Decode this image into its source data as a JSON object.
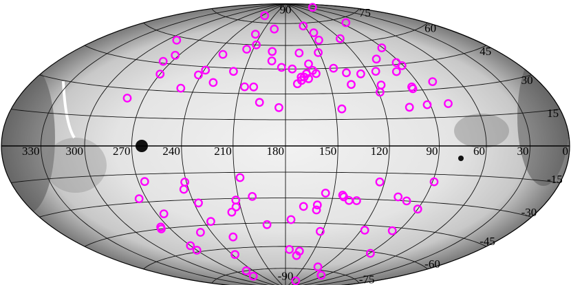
{
  "map": {
    "color": "#ff00ff",
    "lon_ticks": [
      330,
      300,
      270,
      240,
      210,
      180,
      150,
      120,
      90,
      60,
      30,
      0
    ],
    "lat_ticks": [
      90,
      75,
      60,
      45,
      30,
      15,
      -15,
      -30,
      -45,
      -60,
      -75,
      -90
    ],
    "points": {
      "lon": [
        44,
        234,
        82,
        152,
        196,
        217,
        144,
        144,
        120,
        291,
        209,
        216,
        192,
        168,
        151,
        234,
        91,
        273,
        277,
        191,
        106,
        162,
        93,
        91,
        183,
        175,
        218,
        239,
        144,
        160,
        242,
        270,
        165,
        169,
        167,
        158,
        136,
        126,
        99,
        114,
        172,
        169,
        229,
        164,
        249,
        207,
        201,
        136,
        116,
        96,
        96,
        79,
        119,
        281,
        196,
        184,
        146,
        104,
        92,
        78,
        266,
        241,
        243,
        207,
        123,
        89,
        155,
        144,
        143,
        139,
        134,
        108,
        101,
        201,
        275,
        237,
        212,
        213,
        217,
        168,
        159,
        159,
        265,
        235,
        176,
        90,
        95,
        276,
        277,
        117,
        249,
        225,
        152,
        194,
        270,
        270,
        237,
        176,
        165,
        167,
        89,
        252,
        259,
        128,
        99,
        138
      ],
      "lat": [
        84,
        80,
        72,
        73,
        71,
        67,
        68,
        63,
        63,
        58,
        60,
        57,
        56,
        55,
        55,
        53,
        55,
        50,
        46,
        50,
        49,
        48,
        46,
        44,
        46,
        45,
        43,
        43,
        45,
        44,
        40,
        39,
        42,
        40,
        40,
        42,
        42,
        41,
        41,
        42,
        36,
        38,
        36,
        39,
        32,
        34,
        34,
        35,
        34,
        32,
        31,
        34,
        30,
        25,
        25,
        22,
        21,
        21,
        22,
        22,
        -19,
        -20,
        -24,
        -18,
        -20,
        -19,
        -27,
        -28,
        -29,
        -31,
        -31,
        -28,
        -30,
        -29,
        -28,
        -32,
        -31,
        -35,
        -38,
        -35,
        -34,
        -37,
        -37,
        -43,
        -43,
        -34,
        -47,
        -44,
        -45,
        -48,
        -49,
        -53,
        -50,
        -46,
        -56,
        -59,
        -64,
        -62,
        -63,
        -66,
        -61,
        -75,
        -79,
        -73,
        -78,
        -84
      ]
    }
  }
}
